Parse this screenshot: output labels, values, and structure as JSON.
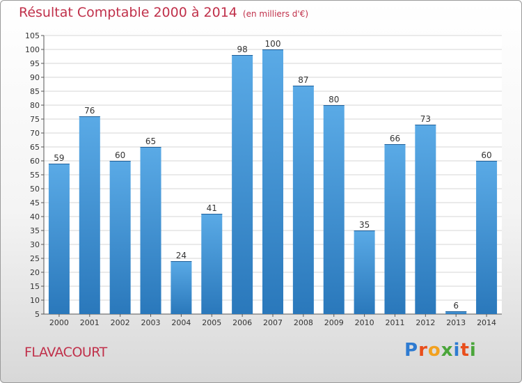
{
  "header": {
    "title": "Résultat Comptable 2000 à 2014",
    "subtitle": "(en milliers d'€)"
  },
  "footer": {
    "place": "FLAVACOURT",
    "logo": "Proxiti",
    "logo_colors": [
      "#2e7bd1",
      "#e94e1b",
      "#f2a11f",
      "#4aa53a",
      "#2e7bd1",
      "#e94e1b",
      "#4aa53a"
    ]
  },
  "chart_data": {
    "type": "bar",
    "title": "Résultat Comptable 2000 à 2014",
    "subtitle": "(en milliers d'€)",
    "categories": [
      "2000",
      "2001",
      "2002",
      "2003",
      "2004",
      "2005",
      "2006",
      "2007",
      "2008",
      "2009",
      "2010",
      "2011",
      "2012",
      "2013",
      "2014"
    ],
    "values": [
      59,
      76,
      60,
      65,
      24,
      41,
      98,
      100,
      87,
      80,
      35,
      66,
      73,
      6,
      60
    ],
    "ylim": [
      5,
      105
    ],
    "ytick_step": 5,
    "grid": true,
    "bar_color_top": "#5aaae6",
    "bar_color_bottom": "#2a78bb"
  }
}
